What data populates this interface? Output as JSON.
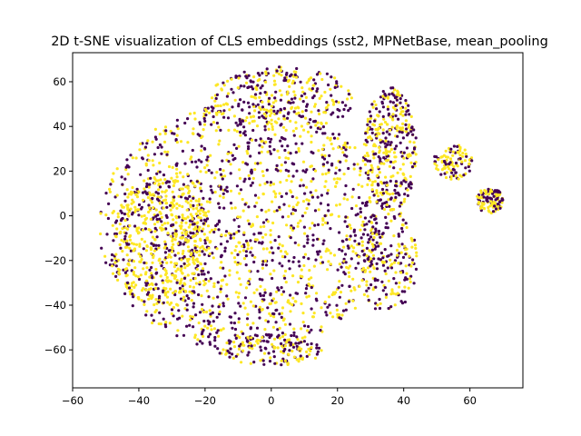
{
  "chart_data": {
    "type": "scatter",
    "title": "2D t-SNE visualization of CLS embeddings (sst2, MPNetBase, mean_pooling",
    "xlabel": "",
    "ylabel": "",
    "xlim": [
      -60,
      76
    ],
    "ylim": [
      -77,
      73
    ],
    "xticks": [
      -60,
      -40,
      -20,
      0,
      20,
      40,
      60
    ],
    "yticks": [
      -60,
      -40,
      -20,
      0,
      20,
      40,
      60
    ],
    "grid": false,
    "legend": "none",
    "colors": {
      "class_0": "#440154",
      "class_1": "#fde725"
    },
    "regions": [
      {
        "cx": -8,
        "cy": -5,
        "rx": 44,
        "ry": 56,
        "n": 1500,
        "p1": 0.5
      },
      {
        "cx": -33,
        "cy": -12,
        "rx": 15,
        "ry": 30,
        "n": 500,
        "p1": 0.78
      },
      {
        "cx": 3,
        "cy": 52,
        "rx": 22,
        "ry": 15,
        "n": 300,
        "p1": 0.5
      },
      {
        "cx": 36,
        "cy": 30,
        "rx": 8,
        "ry": 28,
        "n": 350,
        "p1": 0.55
      },
      {
        "cx": 35,
        "cy": -20,
        "rx": 9,
        "ry": 24,
        "n": 200,
        "p1": 0.45
      },
      {
        "cx": 0,
        "cy": -60,
        "rx": 16,
        "ry": 7,
        "n": 150,
        "p1": 0.5
      },
      {
        "cx": 55,
        "cy": 24,
        "rx": 6,
        "ry": 8,
        "n": 100,
        "p1": 0.65
      },
      {
        "cx": 66,
        "cy": 7,
        "rx": 4,
        "ry": 6,
        "n": 120,
        "p1": 0.6
      }
    ]
  }
}
